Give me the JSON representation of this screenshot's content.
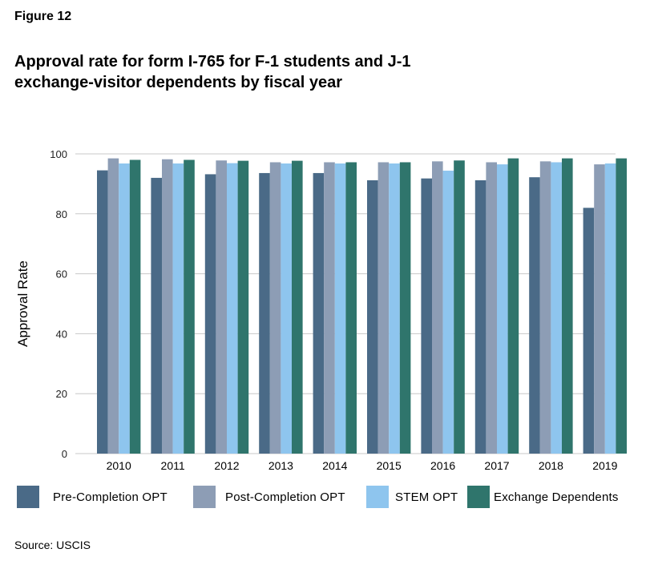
{
  "figure_label": "Figure 12",
  "title_lines": [
    "Approval rate for form I-765 for F-1 students and J-1",
    "exchange-visitor dependents by fiscal year"
  ],
  "source": "Source: USCIS",
  "chart_data": {
    "type": "bar",
    "title": "Approval rate for form I-765 for F-1 students and J-1 exchange-visitor dependents by fiscal year",
    "xlabel": "",
    "ylabel": "Approval Rate",
    "ylim": [
      0,
      100
    ],
    "yticks": [
      0,
      20,
      40,
      60,
      80,
      100
    ],
    "grid": true,
    "legend_position": "bottom",
    "categories": [
      "2010",
      "2011",
      "2012",
      "2013",
      "2014",
      "2015",
      "2016",
      "2017",
      "2018",
      "2019"
    ],
    "series": [
      {
        "name": "Pre-Completion OPT",
        "color": "#4a6a87",
        "values": [
          94.5,
          92.0,
          93.2,
          93.6,
          93.6,
          91.2,
          91.8,
          91.2,
          92.2,
          82.0
        ]
      },
      {
        "name": "Post-Completion OPT",
        "color": "#8d9db5",
        "values": [
          98.5,
          98.2,
          97.8,
          97.2,
          97.2,
          97.2,
          97.5,
          97.2,
          97.5,
          96.5
        ]
      },
      {
        "name": "STEM OPT",
        "color": "#8ec5ee",
        "values": [
          96.8,
          96.8,
          96.9,
          96.8,
          96.8,
          96.8,
          94.4,
          96.5,
          97.2,
          96.8
        ]
      },
      {
        "name": "Exchange Dependents",
        "color": "#2f756c",
        "values": [
          98.0,
          98.0,
          97.7,
          97.7,
          97.2,
          97.2,
          97.8,
          98.5,
          98.5,
          98.5
        ]
      }
    ]
  }
}
